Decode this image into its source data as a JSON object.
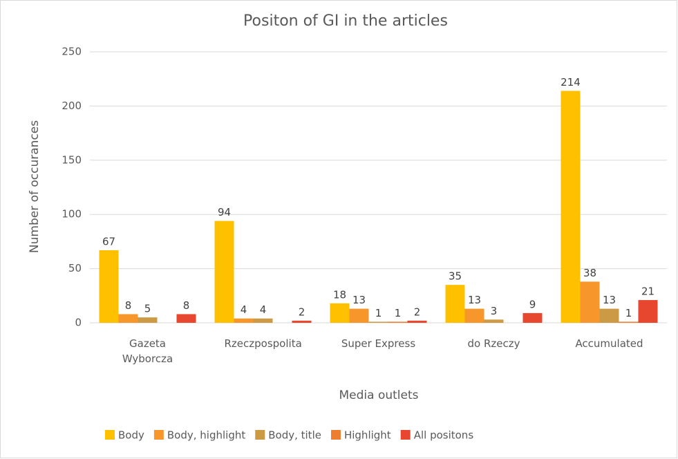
{
  "chart_data": {
    "type": "bar",
    "title": "Positon of GI in the articles",
    "x_label": "Media outlets",
    "y_label": "Number of occurances",
    "categories": [
      "Gazeta Wyborcza",
      "Rzeczpospolita",
      "Super Express",
      "do Rzeczy",
      "Accumulated"
    ],
    "series": [
      {
        "name": "Body",
        "color": "#ffc000",
        "values": [
          67,
          94,
          18,
          35,
          214
        ]
      },
      {
        "name": "Body, highlight",
        "color": "#f7962b",
        "values": [
          8,
          4,
          13,
          13,
          38
        ]
      },
      {
        "name": "Body, title",
        "color": "#cc9a45",
        "values": [
          5,
          4,
          1,
          3,
          13
        ]
      },
      {
        "name": "Highlight",
        "color": "#ed7d31",
        "values": [
          null,
          null,
          1,
          null,
          1
        ]
      },
      {
        "name": "All positons",
        "color": "#e8472f",
        "values": [
          8,
          2,
          2,
          9,
          21
        ]
      }
    ],
    "ylim": [
      0,
      250
    ],
    "yticks": [
      0,
      50,
      100,
      150,
      200,
      250
    ],
    "grid": true,
    "legend": "bottom"
  }
}
